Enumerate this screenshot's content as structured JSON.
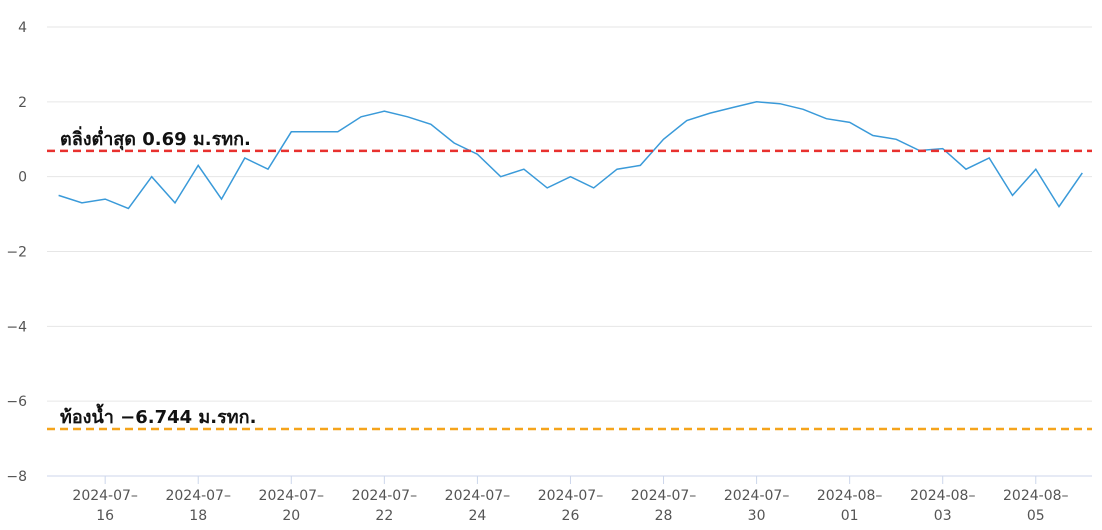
{
  "chart_data": {
    "type": "line",
    "x": [
      "2024-07-15 00:00",
      "2024-07-15 12:00",
      "2024-07-16 00:00",
      "2024-07-16 12:00",
      "2024-07-17 00:00",
      "2024-07-17 12:00",
      "2024-07-18 00:00",
      "2024-07-18 12:00",
      "2024-07-19 00:00",
      "2024-07-19 12:00",
      "2024-07-20 00:00",
      "2024-07-20 12:00",
      "2024-07-21 00:00",
      "2024-07-21 12:00",
      "2024-07-22 00:00",
      "2024-07-22 12:00",
      "2024-07-23 00:00",
      "2024-07-23 12:00",
      "2024-07-24 00:00",
      "2024-07-24 12:00",
      "2024-07-25 00:00",
      "2024-07-25 12:00",
      "2024-07-26 00:00",
      "2024-07-26 12:00",
      "2024-07-27 00:00",
      "2024-07-27 12:00",
      "2024-07-28 00:00",
      "2024-07-28 12:00",
      "2024-07-29 00:00",
      "2024-07-29 12:00",
      "2024-07-30 00:00",
      "2024-07-30 12:00",
      "2024-07-31 00:00",
      "2024-07-31 12:00",
      "2024-08-01 00:00",
      "2024-08-01 12:00",
      "2024-08-02 00:00",
      "2024-08-02 12:00",
      "2024-08-03 00:00",
      "2024-08-03 12:00",
      "2024-08-04 00:00",
      "2024-08-04 12:00",
      "2024-08-05 00:00",
      "2024-08-05 12:00",
      "2024-08-06 00:00"
    ],
    "series": [
      {
        "color": "#3a9ad9",
        "values": [
          -0.5,
          -0.7,
          -0.6,
          -0.85,
          0.0,
          -0.7,
          0.3,
          -0.6,
          0.5,
          0.2,
          1.2,
          1.2,
          1.2,
          1.6,
          1.75,
          1.6,
          1.4,
          0.9,
          0.6,
          0.0,
          0.2,
          -0.3,
          0.0,
          -0.3,
          0.2,
          0.3,
          1.0,
          1.5,
          1.7,
          1.85,
          2.0,
          1.95,
          1.8,
          1.55,
          1.45,
          1.1,
          1.0,
          0.7,
          0.75,
          0.2,
          0.5,
          -0.5,
          0.2,
          -0.8,
          0.1
        ]
      }
    ],
    "xlim": [
      "2024-07-14 18:00",
      "2024-08-06 05:00"
    ],
    "xticks": [
      {
        "value": "2024-07-16",
        "label": "2024-07–16"
      },
      {
        "value": "2024-07-18",
        "label": "2024-07–18"
      },
      {
        "value": "2024-07-20",
        "label": "2024-07–20"
      },
      {
        "value": "2024-07-22",
        "label": "2024-07–22"
      },
      {
        "value": "2024-07-24",
        "label": "2024-07–24"
      },
      {
        "value": "2024-07-26",
        "label": "2024-07–26"
      },
      {
        "value": "2024-07-28",
        "label": "2024-07–28"
      },
      {
        "value": "2024-07-30",
        "label": "2024-07–30"
      },
      {
        "value": "2024-08-01",
        "label": "2024-08–01"
      },
      {
        "value": "2024-08-03",
        "label": "2024-08–03"
      },
      {
        "value": "2024-08-05",
        "label": "2024-08–05"
      }
    ],
    "ylim": [
      -8,
      4
    ],
    "yticks": [
      {
        "value": -8,
        "label": "−8"
      },
      {
        "value": -6,
        "label": "−6"
      },
      {
        "value": -4,
        "label": "−4"
      },
      {
        "value": -2,
        "label": "−2"
      },
      0,
      2,
      4
    ],
    "grid": true,
    "reference_lines": [
      {
        "value": 0.69,
        "label": "ตลิ่งต่ำสุด 0.69 ม.รทก.",
        "color": "#e8312f"
      },
      {
        "value": -6.744,
        "label": "ท้องน้ำ −6.744 ม.รทก.",
        "color": "#f5a41b"
      }
    ]
  }
}
